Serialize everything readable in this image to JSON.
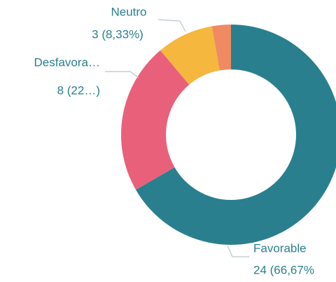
{
  "chart_data": {
    "type": "donut",
    "categories": [
      "Favorable",
      "Desfavora…",
      "Neutro",
      null
    ],
    "values": [
      24,
      8,
      3,
      1
    ],
    "value_labels": [
      "24 (66,67%",
      "8 (22…)",
      "3 (8,33%)",
      null
    ],
    "colors": [
      "#2a7f8e",
      "#e9607a",
      "#f5b73e",
      "#ef8a62"
    ]
  }
}
